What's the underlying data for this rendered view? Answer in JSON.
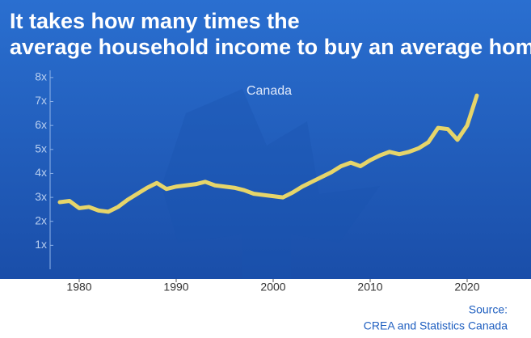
{
  "chart_data": {
    "type": "line",
    "title": "It takes how many times the average household income to buy an average home?",
    "annotation": "Canada",
    "source_label": "Source:",
    "source": "CREA and Statistics Canada",
    "x": [
      1978,
      1979,
      1980,
      1981,
      1982,
      1983,
      1984,
      1985,
      1986,
      1987,
      1988,
      1989,
      1990,
      1991,
      1992,
      1993,
      1994,
      1995,
      1996,
      1997,
      1998,
      1999,
      2000,
      2001,
      2002,
      2003,
      2004,
      2005,
      2006,
      2007,
      2008,
      2009,
      2010,
      2011,
      2012,
      2013,
      2014,
      2015,
      2016,
      2017,
      2018,
      2019,
      2020,
      2021
    ],
    "series": [
      {
        "name": "Canada",
        "color": "#e6d56a",
        "values": [
          2.8,
          2.85,
          2.55,
          2.6,
          2.45,
          2.4,
          2.6,
          2.9,
          3.15,
          3.4,
          3.6,
          3.35,
          3.45,
          3.5,
          3.55,
          3.65,
          3.5,
          3.45,
          3.4,
          3.3,
          3.15,
          3.1,
          3.05,
          3.0,
          3.2,
          3.45,
          3.65,
          3.85,
          4.05,
          4.3,
          4.45,
          4.3,
          4.55,
          4.75,
          4.9,
          4.8,
          4.9,
          5.05,
          5.3,
          5.9,
          5.85,
          5.4,
          6.0,
          7.25
        ]
      }
    ],
    "xlim": [
      1977,
      2023
    ],
    "xticks": [
      1980,
      1990,
      2000,
      2010,
      2020
    ],
    "ylim": [
      0,
      8.3
    ],
    "yticks": [
      {
        "value": 1,
        "label": "1x"
      },
      {
        "value": 2,
        "label": "2x"
      },
      {
        "value": 3,
        "label": "3x"
      },
      {
        "value": 4,
        "label": "4x"
      },
      {
        "value": 5,
        "label": "5x"
      },
      {
        "value": 6,
        "label": "6x"
      },
      {
        "value": 7,
        "label": "7x"
      },
      {
        "value": 8,
        "label": "8x"
      }
    ],
    "grid": false
  }
}
